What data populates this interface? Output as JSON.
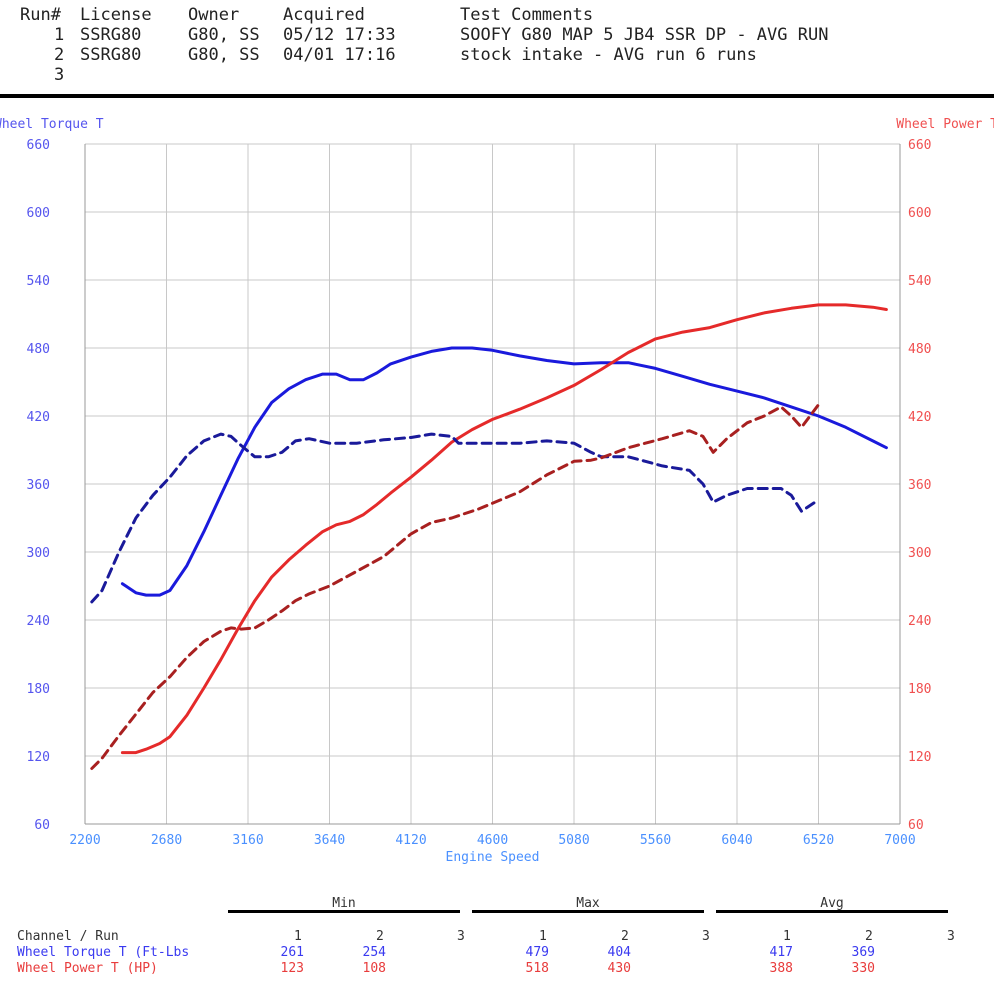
{
  "header": {
    "columns": [
      "Run#",
      "License",
      "Owner",
      "Acquired",
      "Test Comments"
    ],
    "rows": [
      {
        "run": "1",
        "license": "SSRG80",
        "owner": "G80, SS",
        "acquired": "05/12 17:33",
        "comments": "SOOFY G80 MAP 5 JB4 SSR DP - AVG RUN"
      },
      {
        "run": "2",
        "license": "SSRG80",
        "owner": "G80, SS",
        "acquired": "04/01 17:16",
        "comments": "stock intake - AVG run 6 runs"
      },
      {
        "run": "3",
        "license": "",
        "owner": "",
        "acquired": "",
        "comments": ""
      }
    ]
  },
  "chart_data": {
    "type": "line",
    "xlabel": "Engine Speed",
    "ylabel_left": "Wheel Torque T",
    "ylabel_right": "Wheel Power T",
    "xlim": [
      2200,
      7000
    ],
    "x_ticks": [
      2200,
      2680,
      3160,
      3640,
      4120,
      4600,
      5080,
      5560,
      6040,
      6520,
      7000
    ],
    "ylim_left": [
      60,
      660
    ],
    "ylim_right": [
      60,
      660
    ],
    "y_ticks": [
      60,
      120,
      180,
      240,
      300,
      360,
      420,
      480,
      540,
      600,
      660
    ],
    "grid": true,
    "colors": {
      "torque": "#1a1adc",
      "power": "#e52a2a",
      "torque_run2": "#1a1a9a",
      "power_run2": "#a82020",
      "left_axis_text": "#5555ee",
      "right_axis_text": "#f05050",
      "x_axis_text": "#4a90ff"
    },
    "series": [
      {
        "name": "Wheel Torque T",
        "run": "1",
        "axis": "left",
        "style": "solid",
        "x": [
          2420,
          2500,
          2560,
          2640,
          2700,
          2800,
          2900,
          3000,
          3100,
          3200,
          3300,
          3400,
          3500,
          3600,
          3680,
          3760,
          3840,
          3920,
          4000,
          4120,
          4240,
          4360,
          4480,
          4600,
          4760,
          4920,
          5080,
          5240,
          5400,
          5560,
          5720,
          5880,
          6040,
          6200,
          6360,
          6520,
          6680,
          6840,
          6920
        ],
        "y": [
          272,
          264,
          262,
          262,
          266,
          288,
          318,
          350,
          382,
          410,
          432,
          444,
          452,
          457,
          457,
          452,
          452,
          458,
          466,
          472,
          477,
          480,
          480,
          478,
          473,
          469,
          466,
          467,
          467,
          462,
          455,
          448,
          442,
          436,
          428,
          420,
          410,
          398,
          392
        ]
      },
      {
        "name": "Wheel Power T",
        "run": "1",
        "axis": "right",
        "style": "solid",
        "x": [
          2420,
          2500,
          2560,
          2640,
          2700,
          2800,
          2900,
          3000,
          3100,
          3200,
          3300,
          3400,
          3500,
          3600,
          3680,
          3760,
          3840,
          3920,
          4000,
          4120,
          4240,
          4360,
          4480,
          4600,
          4760,
          4920,
          5080,
          5240,
          5400,
          5560,
          5720,
          5880,
          6040,
          6200,
          6360,
          6520,
          6680,
          6840,
          6920
        ],
        "y": [
          123,
          123,
          126,
          131,
          137,
          156,
          180,
          205,
          232,
          257,
          278,
          293,
          306,
          318,
          324,
          327,
          333,
          342,
          352,
          366,
          381,
          397,
          408,
          417,
          426,
          436,
          447,
          461,
          476,
          488,
          494,
          498,
          505,
          511,
          515,
          518,
          518,
          516,
          514
        ]
      },
      {
        "name": "Wheel Torque T",
        "run": "2",
        "axis": "left",
        "style": "dashed",
        "x": [
          2240,
          2300,
          2400,
          2500,
          2600,
          2700,
          2800,
          2900,
          3000,
          3060,
          3120,
          3200,
          3280,
          3360,
          3440,
          3520,
          3640,
          3800,
          3960,
          4120,
          4240,
          4360,
          4400,
          4520,
          4760,
          4920,
          5080,
          5180,
          5240,
          5400,
          5500,
          5600,
          5760,
          5840,
          5900,
          5980,
          6100,
          6200,
          6300,
          6360,
          6420,
          6520
        ],
        "y": [
          256,
          266,
          300,
          330,
          350,
          366,
          385,
          398,
          404,
          402,
          394,
          384,
          384,
          388,
          398,
          400,
          396,
          396,
          399,
          401,
          404,
          402,
          396,
          396,
          396,
          398,
          396,
          388,
          384,
          384,
          380,
          376,
          372,
          360,
          344,
          350,
          356,
          356,
          356,
          350,
          336,
          346
        ]
      },
      {
        "name": "Wheel Power T",
        "run": "2",
        "axis": "right",
        "style": "dashed",
        "x": [
          2240,
          2300,
          2400,
          2500,
          2600,
          2700,
          2800,
          2900,
          3000,
          3060,
          3120,
          3200,
          3280,
          3360,
          3440,
          3520,
          3640,
          3800,
          3960,
          4120,
          4240,
          4360,
          4400,
          4520,
          4760,
          4920,
          5080,
          5180,
          5240,
          5400,
          5500,
          5600,
          5760,
          5840,
          5900,
          5980,
          6100,
          6200,
          6300,
          6360,
          6420,
          6520
        ],
        "y": [
          109,
          118,
          138,
          157,
          176,
          190,
          207,
          221,
          230,
          233,
          232,
          233,
          240,
          248,
          257,
          263,
          270,
          283,
          296,
          316,
          326,
          330,
          332,
          338,
          353,
          368,
          380,
          381,
          383,
          392,
          396,
          400,
          407,
          402,
          388,
          400,
          414,
          420,
          428,
          420,
          410,
          430
        ]
      }
    ]
  },
  "summary": {
    "groups": [
      "Min",
      "Max",
      "Avg"
    ],
    "header_label": "Channel / Run",
    "run_labels": [
      "1",
      "2",
      "3"
    ],
    "rows": [
      {
        "channel": "Wheel Torque T (Ft-Lbs",
        "min": [
          "261",
          "254",
          ""
        ],
        "max": [
          "479",
          "404",
          ""
        ],
        "avg": [
          "417",
          "369",
          ""
        ]
      },
      {
        "channel": "Wheel Power T (HP)",
        "min": [
          "123",
          "108",
          ""
        ],
        "max": [
          "518",
          "430",
          ""
        ],
        "avg": [
          "388",
          "330",
          ""
        ]
      }
    ]
  }
}
